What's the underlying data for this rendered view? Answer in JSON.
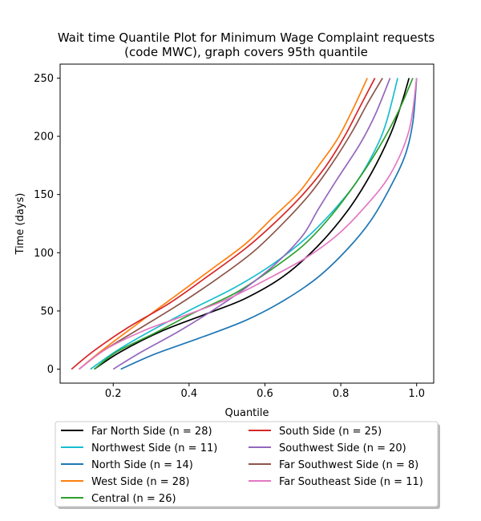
{
  "chart_data": {
    "type": "line",
    "title_line1": "Wait time Quantile Plot for Minimum Wage Complaint  requests",
    "title_line2": "(code MWC), graph covers 95th quantile",
    "xlabel": "Quantile",
    "ylabel": "Time (days)",
    "xlim": [
      0.06,
      1.045
    ],
    "ylim": [
      -12,
      262
    ],
    "xticks": [
      "0.2",
      "0.4",
      "0.6",
      "0.8",
      "1.0"
    ],
    "yticks": [
      "0",
      "50",
      "100",
      "150",
      "200",
      "250"
    ],
    "grid": false,
    "legend_position": "below plot, two columns",
    "series": [
      {
        "name": "Far North Side (n = 28)",
        "color": "#000000",
        "points": [
          [
            0.15,
            0
          ],
          [
            0.22,
            15
          ],
          [
            0.33,
            33
          ],
          [
            0.45,
            48
          ],
          [
            0.55,
            61
          ],
          [
            0.65,
            80
          ],
          [
            0.74,
            106
          ],
          [
            0.82,
            137
          ],
          [
            0.88,
            168
          ],
          [
            0.93,
            201
          ],
          [
            0.96,
            228
          ],
          [
            0.98,
            250
          ]
        ]
      },
      {
        "name": "Northwest Side (n = 11)",
        "color": "#17becf",
        "points": [
          [
            0.14,
            0
          ],
          [
            0.21,
            16
          ],
          [
            0.3,
            33
          ],
          [
            0.41,
            52
          ],
          [
            0.52,
            70
          ],
          [
            0.62,
            90
          ],
          [
            0.71,
            113
          ],
          [
            0.78,
            136
          ],
          [
            0.84,
            160
          ],
          [
            0.89,
            188
          ],
          [
            0.92,
            212
          ],
          [
            0.95,
            250
          ]
        ]
      },
      {
        "name": "North Side (n = 14)",
        "color": "#1f77b4",
        "points": [
          [
            0.22,
            0
          ],
          [
            0.31,
            13
          ],
          [
            0.43,
            27
          ],
          [
            0.55,
            42
          ],
          [
            0.65,
            59
          ],
          [
            0.74,
            79
          ],
          [
            0.82,
            104
          ],
          [
            0.88,
            128
          ],
          [
            0.93,
            156
          ],
          [
            0.97,
            184
          ],
          [
            0.99,
            212
          ],
          [
            1.0,
            250
          ]
        ]
      },
      {
        "name": "West Side (n = 28)",
        "color": "#ff7f0e",
        "points": [
          [
            0.11,
            0
          ],
          [
            0.17,
            16
          ],
          [
            0.26,
            38
          ],
          [
            0.36,
            62
          ],
          [
            0.46,
            86
          ],
          [
            0.55,
            108
          ],
          [
            0.62,
            130
          ],
          [
            0.69,
            152
          ],
          [
            0.74,
            174
          ],
          [
            0.79,
            197
          ],
          [
            0.83,
            222
          ],
          [
            0.87,
            250
          ]
        ]
      },
      {
        "name": "Central (n = 26)",
        "color": "#2ca02c",
        "points": [
          [
            0.15,
            0
          ],
          [
            0.21,
            15
          ],
          [
            0.31,
            31
          ],
          [
            0.41,
            48
          ],
          [
            0.52,
            65
          ],
          [
            0.61,
            84
          ],
          [
            0.7,
            106
          ],
          [
            0.77,
            130
          ],
          [
            0.84,
            160
          ],
          [
            0.9,
            190
          ],
          [
            0.95,
            220
          ],
          [
            0.99,
            250
          ]
        ]
      },
      {
        "name": "South Side (n = 25)",
        "color": "#d62728",
        "points": [
          [
            0.09,
            0
          ],
          [
            0.15,
            16
          ],
          [
            0.24,
            36
          ],
          [
            0.35,
            57
          ],
          [
            0.45,
            80
          ],
          [
            0.55,
            104
          ],
          [
            0.63,
            127
          ],
          [
            0.7,
            150
          ],
          [
            0.76,
            174
          ],
          [
            0.81,
            200
          ],
          [
            0.85,
            225
          ],
          [
            0.89,
            250
          ]
        ]
      },
      {
        "name": "Southwest Side (n = 20)",
        "color": "#9467bd",
        "points": [
          [
            0.2,
            0
          ],
          [
            0.27,
            14
          ],
          [
            0.37,
            32
          ],
          [
            0.46,
            50
          ],
          [
            0.55,
            70
          ],
          [
            0.63,
            91
          ],
          [
            0.7,
            115
          ],
          [
            0.74,
            137
          ],
          [
            0.79,
            163
          ],
          [
            0.85,
            193
          ],
          [
            0.89,
            218
          ],
          [
            0.93,
            250
          ]
        ]
      },
      {
        "name": "Far Southwest Side (n = 8)",
        "color": "#8c564b",
        "points": [
          [
            0.11,
            0
          ],
          [
            0.17,
            15
          ],
          [
            0.27,
            35
          ],
          [
            0.38,
            57
          ],
          [
            0.48,
            79
          ],
          [
            0.57,
            101
          ],
          [
            0.65,
            126
          ],
          [
            0.72,
            151
          ],
          [
            0.78,
            178
          ],
          [
            0.83,
            204
          ],
          [
            0.87,
            228
          ],
          [
            0.91,
            250
          ]
        ]
      },
      {
        "name": "Far Southeast Side (n = 11)",
        "color": "#e377c2",
        "points": [
          [
            0.11,
            0
          ],
          [
            0.18,
            17
          ],
          [
            0.28,
            33
          ],
          [
            0.38,
            45
          ],
          [
            0.5,
            60
          ],
          [
            0.61,
            78
          ],
          [
            0.71,
            96
          ],
          [
            0.79,
            115
          ],
          [
            0.86,
            138
          ],
          [
            0.93,
            167
          ],
          [
            0.98,
            205
          ],
          [
            1.0,
            250
          ]
        ]
      }
    ]
  }
}
